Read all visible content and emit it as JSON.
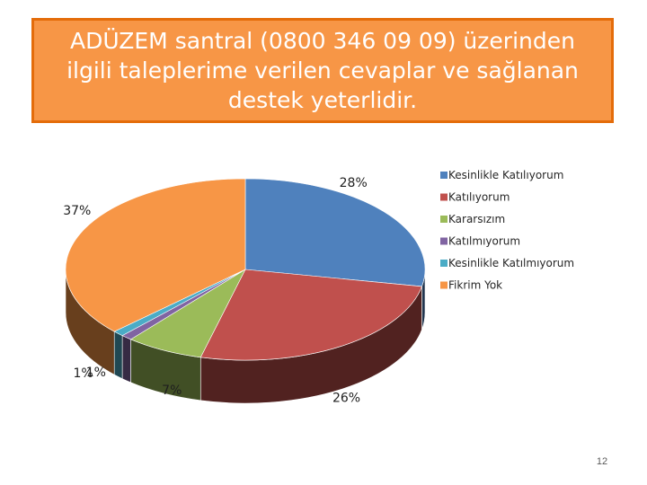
{
  "slide": {
    "title": "ADÜZEM santral (0800 346 09 09) üzerinden ilgili taleplerime verilen cevaplar ve sağlanan destek yeterlidir.",
    "page_number": "12"
  },
  "colors": {
    "title_fill": "#f79646",
    "title_border": "#e46c0a"
  },
  "chart_data": {
    "type": "pie",
    "title": "",
    "legend_position": "right",
    "slices": [
      {
        "name": "Kesinlikle Katılıyorum",
        "value": 28,
        "label": "28%",
        "color": "#4f81bd"
      },
      {
        "name": "Katılıyorum",
        "value": 26,
        "label": "26%",
        "color": "#c0504d"
      },
      {
        "name": "Kararsızım",
        "value": 7,
        "label": "7%",
        "color": "#9bbb59"
      },
      {
        "name": "Katılmıyorum",
        "value": 1,
        "label": "1%",
        "color": "#8064a2"
      },
      {
        "name": "Kesinlikle Katılmıyorum",
        "value": 1,
        "label": "1%",
        "color": "#4bacc6"
      },
      {
        "name": "Fikrim Yok",
        "value": 37,
        "label": "37%",
        "color": "#f79646"
      }
    ]
  }
}
